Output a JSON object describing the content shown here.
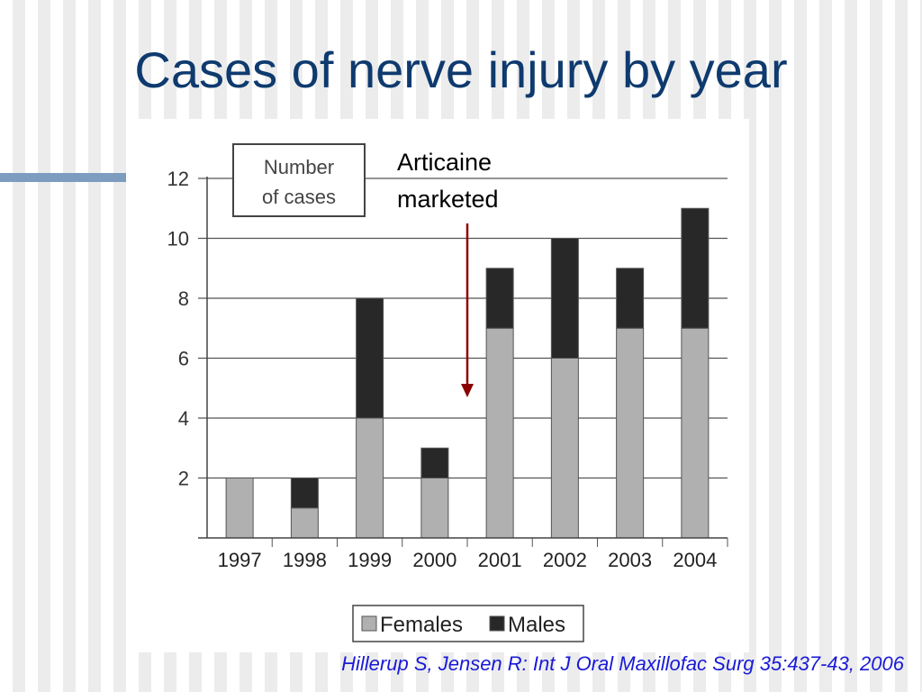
{
  "slide": {
    "title": "Cases of nerve injury by year",
    "citation": "Hillerup S, Jensen R: Int J Oral Maxillofac Surg 35:437-43, 2006"
  },
  "colors": {
    "title": "#0e3a6e",
    "accent_bar": "#7d9cc0",
    "females": "#b0b0b0",
    "males": "#282828",
    "arrow": "#8b0000",
    "citation": "#1a1ad8"
  },
  "chart_data": {
    "type": "bar",
    "stacked": true,
    "title": "",
    "ylabel": "Number of cases",
    "xlabel": "",
    "categories": [
      "1997",
      "1998",
      "1999",
      "2000",
      "2001",
      "2002",
      "2003",
      "2004"
    ],
    "series": [
      {
        "name": "Females",
        "values": [
          2,
          1,
          4,
          2,
          7,
          6,
          7,
          7
        ]
      },
      {
        "name": "Males",
        "values": [
          0,
          1,
          4,
          1,
          2,
          4,
          2,
          4
        ]
      }
    ],
    "ylim": [
      0,
      12
    ],
    "yticks": [
      2,
      4,
      6,
      8,
      10,
      12
    ],
    "grid": true,
    "legend": "bottom-center",
    "annotation": {
      "text_line1": "Articaine",
      "text_line2": "marketed",
      "between": [
        "2000",
        "2001"
      ]
    }
  }
}
